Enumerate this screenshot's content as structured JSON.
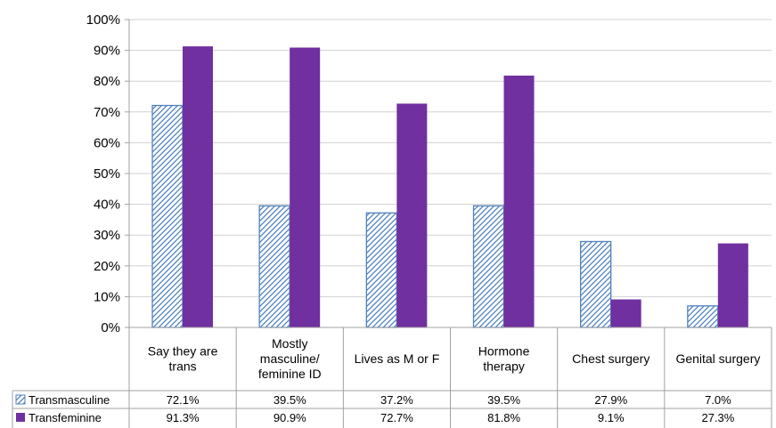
{
  "chart_data": {
    "type": "bar",
    "categories": [
      [
        "Say they are",
        "trans"
      ],
      [
        "Mostly",
        "masculine/",
        "feminine ID"
      ],
      [
        "Lives as M or F"
      ],
      [
        "Hormone",
        "therapy"
      ],
      [
        "Chest surgery"
      ],
      [
        "Genital surgery"
      ]
    ],
    "series": [
      {
        "name": "Transmasculine",
        "values": [
          72.1,
          39.5,
          37.2,
          39.5,
          27.9,
          7.0
        ],
        "labels": [
          "72.1%",
          "39.5%",
          "37.2%",
          "39.5%",
          "27.9%",
          "7.0%"
        ],
        "fill": "hatch",
        "color": "#4f81bd"
      },
      {
        "name": "Transfeminine",
        "values": [
          91.3,
          90.9,
          72.7,
          81.8,
          9.1,
          27.3
        ],
        "labels": [
          "91.3%",
          "90.9%",
          "72.7%",
          "81.8%",
          "9.1%",
          "27.3%"
        ],
        "fill": "solid",
        "color": "#7030a0"
      }
    ],
    "yticks": [
      "0%",
      "10%",
      "20%",
      "30%",
      "40%",
      "50%",
      "60%",
      "70%",
      "80%",
      "90%",
      "100%"
    ],
    "ylim": [
      0,
      100
    ],
    "grid": true,
    "legend": "data-table-left"
  }
}
